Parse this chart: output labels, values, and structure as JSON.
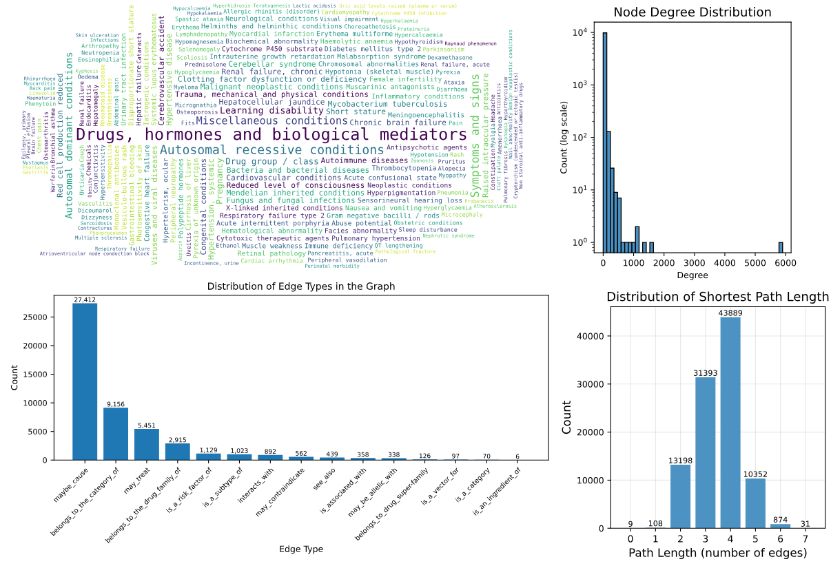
{
  "chart_data": [
    {
      "type": "other",
      "annotations": [
        "Drugs, hormones and biological mediators",
        "Autosomal recessive conditions",
        "Symptoms and signs",
        "Miscellaneous conditions",
        "Autosomal dominant conditions",
        "Learning disability",
        "Drug group / class",
        "Pregnancy",
        "Hepatocellular jaundice",
        "Bacteria and bacterial diseases",
        "Trauma, mechanical and physical conditions",
        "Red cell production reduced",
        "Raised intraocular pressure",
        "Cardiovascular conditions",
        "Malignant neoplastic conditions",
        "Reduced level of consciousness",
        "Clotting factor dysfunction or deficiency",
        "Hypertension, systemic",
        "Congenital conditions",
        "Mendelian inherited conditions",
        "Autoimmune diseases",
        "Short stature",
        "Hypertensive disease",
        "Renal failure, chronic",
        "Fungus and fungal infections",
        "Cerebrovascular accident",
        "Mycobacterium tuberculosis",
        "Viruses and viral diseases",
        "Chronic brain failure",
        "Cerebellar syndrome",
        "X-linked inherited conditions",
        "Intrauterine growth retardation",
        "Pyrexia of unknown origin",
        "Acute confusional state",
        "Muscarinic antagonists",
        "Respiratory failure type 2",
        "Hypotonia (skeletal muscle)",
        "Cirrhosis of liver",
        "Thrombocytopenia",
        "Polypeptide hormones",
        "Cytochrome P450 substrate",
        "Chromosomal abnormalities",
        "Systemic lupus erythematosus",
        "Acute intermittent porphyria",
        "Inflammatory conditions",
        "Neoplastic conditions",
        "Congestive heart failure",
        "Peripheral neuropathy",
        "Biochemical abnormality",
        "Hematological abnormality",
        "Antipsychotic agents",
        "Meningoencephalitis",
        "Iatrogenic conditions",
        "Hypertelorism, ocular",
        "Female infertility",
        "Hyperpigmentation",
        "Gram negative bacilli / rods",
        "Photosensitivity of skin",
        "Sensorineural hearing loss",
        "Nausea and vomiting",
        "Hepatic failure",
        "Malabsorption syndrome",
        "Gastrointestinal bleeding",
        "Diabetes mellitus type 2",
        "Myocardial infarction",
        "Cytotoxic therapeutic agents",
        "Helminths and helminthic conditions",
        "Disproportionate short stature",
        "Abuse potential",
        "Haemolytic anaemia",
        "Facies abnormality",
        "Erythema multiforme",
        "Vesiculo-bullous rash",
        "Muscle weakness",
        "Urinary tract infection",
        "Pulmonary hypertension",
        "Neurological conditions",
        "Monoclonal antibodies",
        "Immune deficiency",
        "Retinal pathology",
        "Osteoporosis",
        "Abdominal pain",
        "Thrombophilia",
        "Micrognathia",
        "Hypoglycaemia",
        "Prednisolone",
        "Hypotension",
        "Breathlessness",
        "Hypersensitivity",
        "Lymphadenopathy",
        "Renal failure, acute",
        "Obstetric conditions",
        "Rheumatoid disease",
        "Hypomagnesemia",
        "Hyperglycaemia",
        "Conjunctivitis",
        "Choreoathetosis",
        "Hepatomegaly",
        "Pancreatitis, acute",
        "Splenomegaly",
        "Hypothyroidism",
        "Eosinophilia",
        "Chemicals",
        "Dexamethasone",
        "Scoliosis",
        "Pruritus",
        "Allergic rhinitis (disorder)",
        "Endocarditis",
        "Visual impairment",
        "Cough",
        "Sleep disturbance",
        "Diarrhoea",
        "Renal failure",
        "Myeloma",
        "Vasculitis",
        "Alopecia",
        "Urticaria",
        "Cataracts",
        "Myopathy",
        "Pneumonia",
        "Fits",
        "Pain",
        "Bronchial asthma",
        "Myalgia",
        "Cardiac arrhythmia",
        "Ataxia",
        "Spastic ataxia",
        "Osteoarthritis",
        "Pyrexia",
        "Rash",
        "Amenorrhoea",
        "Erythema",
        "Constipation",
        "Neutropenia",
        "Parkinsonism",
        "Ethanol",
        "Hypercalcaemia",
        "Uveitis",
        "Dicoumarol",
        "Microcephaly",
        "Oedema",
        "Arthropathy",
        "Headache",
        "Dizzyness",
        "Chest pain",
        "Peripheral vasodilation",
        "Phenytoin",
        "Warfarin",
        "QT lengthening",
        "Cardiomyopathy",
        "Hypokalaemia",
        "Dysphagia",
        "Obesity",
        "Sarcoidosis",
        "Probenecid",
        "Haematuria",
        "Teratogenesis",
        "Brain failure",
        "Cleft palate",
        "Phenprocoumon",
        "Incontinence, urine",
        "Zoonosis",
        "Antibiotics",
        "Nystagmus",
        "Linezolid",
        "Nail abnormality",
        "Proteinuria",
        "Cryptorchism (undescended or ectopic testis)",
        "Infections",
        "Psoriasis",
        "Lactic acidosis",
        "Hyperhidrosis",
        "Pulmonary fibrosis",
        "Perinatal morbidity",
        "Pathological fracture",
        "Contractures",
        "Hyperkalaemia",
        "Pleural effusion",
        "Hypocalcaemia",
        "Uric acid levels raised (plasma or serum)",
        "Multiple sclerosis",
        "Nephrotic syndrome",
        "Non steroidal anti-inflammatory drugs",
        "Back pain",
        "Gastritis",
        "Respiratory failure",
        "Aspirin",
        "Hyperthyroidism",
        "Myocarditis",
        "Cytochrome P450 inhibition",
        "Skin ulceration",
        "Atherosclerosis",
        "Epilepsy, primary",
        "Benign neoplastic conditions",
        "Raynaud phenomenon",
        "Rhinorrhoea",
        "Kyphosis",
        "Atrioventricular node conduction block"
      ]
    },
    {
      "type": "histogram",
      "title": "Node Degree Distribution",
      "xlabel": "Degree",
      "ylabel": "Count (log scale)",
      "color": "#4a90c2",
      "log": "y",
      "bins": [
        0,
        118,
        236,
        354,
        472,
        590,
        708,
        826,
        944,
        1062,
        1180,
        1298,
        1416,
        1534,
        1652,
        1770,
        1888,
        2006,
        2124,
        2242,
        2360,
        2478,
        2596,
        2714,
        2832,
        2950,
        3068,
        3186,
        3304,
        3422,
        3540,
        3658,
        3776,
        3894,
        4012,
        4130,
        4248,
        4366,
        4484,
        4602,
        4720,
        4838,
        4956,
        5074,
        5192,
        5310,
        5428,
        5546,
        5664,
        5782,
        5900
      ],
      "values": [
        9800,
        130,
        26,
        9,
        7,
        1,
        1,
        1,
        1,
        2,
        null,
        1,
        null,
        1,
        null,
        null,
        null,
        null,
        null,
        null,
        null,
        null,
        null,
        null,
        null,
        null,
        null,
        null,
        null,
        null,
        null,
        null,
        null,
        null,
        null,
        null,
        null,
        null,
        null,
        null,
        null,
        null,
        null,
        null,
        null,
        null,
        null,
        null,
        null,
        1
      ],
      "xlim": [
        -297,
        6180
      ],
      "ylim": [
        0.635,
        15700
      ],
      "xticks": [
        0,
        1000,
        2000,
        3000,
        4000,
        5000,
        6000
      ],
      "yticks": [
        {
          "value": 1,
          "label": "10$^{0}$"
        },
        {
          "value": 10,
          "label": "10$^{1}$"
        },
        {
          "value": 100,
          "label": "10$^{2}$"
        },
        {
          "value": 1000,
          "label": "10$^{3}$"
        },
        {
          "value": 10000,
          "label": "10$^{4}$"
        }
      ]
    },
    {
      "type": "bar",
      "title": "Distribution of Edge Types in the Graph",
      "xlabel": "Edge Type",
      "ylabel": "Count",
      "color": "#1f77b4",
      "categories": [
        "maybe_cause",
        "belongs_to_the_category_of",
        "may_treat",
        "belongs_to_the_drug_family_of",
        "is_a_risk_factor_of",
        "is_a_subtype_of",
        "interacts_with",
        "may_contraindicate",
        "see_also",
        "is_associated_with",
        "may_be_allelic_with",
        "belongs_to_drug_super-family",
        "is_a_vector_for",
        "is_a_category",
        "is_an_ingredient_of"
      ],
      "values": [
        27412,
        9156,
        5451,
        2915,
        1129,
        1023,
        892,
        562,
        439,
        358,
        338,
        126,
        97,
        70,
        6
      ],
      "value_labels": [
        "27,412",
        "9,156",
        "5,451",
        "2,915",
        "1,129",
        "1,023",
        "892",
        "562",
        "439",
        "358",
        "338",
        "126",
        "97",
        "70",
        "6"
      ],
      "ylim": [
        0,
        28783
      ],
      "yticks": [
        0,
        5000,
        10000,
        15000,
        20000,
        25000
      ]
    },
    {
      "type": "bar",
      "title": "Distribution of Shortest Path Length",
      "xlabel": "Path Length (number of edges)",
      "ylabel": "Count",
      "color": "#4c92c3",
      "grid": true,
      "data_labels": true,
      "categories": [
        "0",
        "1",
        "2",
        "3",
        "4",
        "5",
        "6",
        "7"
      ],
      "values": [
        9,
        108,
        13198,
        31393,
        43889,
        10352,
        874,
        31
      ],
      "ylim": [
        0,
        46083
      ],
      "yticks": [
        0,
        10000,
        20000,
        30000,
        40000
      ]
    }
  ]
}
